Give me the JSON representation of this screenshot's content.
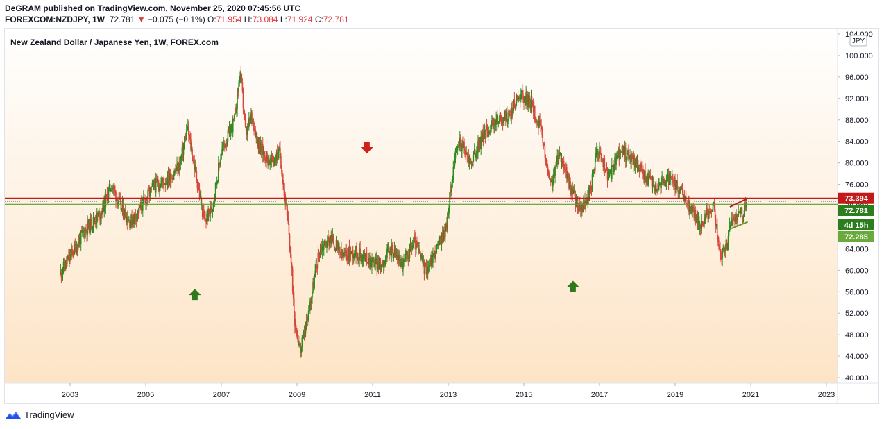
{
  "header": {
    "line1": "DeGRAM published on TradingView.com, November 25, 2020 07:45:56 UTC",
    "symbol": "FOREXCOM:NZDJPY, 1W",
    "last": "72.781",
    "change": "−0.075 (−0.1%)",
    "o_label": "O:",
    "o": "71.954",
    "h_label": "H:",
    "h": "73.084",
    "l_label": "L:",
    "l": "71.924",
    "c_label": "C:",
    "c": "72.781"
  },
  "currency": "JPY",
  "footer": {
    "brand": "TradingView"
  },
  "colors": {
    "up": "#2f8a1f",
    "down": "#d9463a",
    "resistance": "#c21a1a",
    "support": "#5aa02c",
    "bg_top": "#ffffff",
    "bg_bottom": "#fde4c6"
  },
  "chart_data": {
    "type": "candlestick",
    "title": "New Zealand Dollar / Japanese Yen, 1W, FOREX.com",
    "ylim": [
      39,
      104.5
    ],
    "y_ticks": [
      "40.000",
      "44.000",
      "48.000",
      "52.000",
      "56.000",
      "60.000",
      "64.000",
      "68.000",
      "72.000",
      "76.000",
      "80.000",
      "84.000",
      "88.000",
      "92.000",
      "96.000",
      "100.000",
      "104.000"
    ],
    "x_ticks": [
      "2003",
      "2005",
      "2007",
      "2009",
      "2011",
      "2013",
      "2015",
      "2017",
      "2019",
      "2021",
      "2023"
    ],
    "x_range": [
      2002.5,
      2023.3
    ],
    "price_path": [
      [
        2002.75,
        59.5
      ],
      [
        2003.0,
        62.5
      ],
      [
        2003.4,
        67.5
      ],
      [
        2003.8,
        70.5
      ],
      [
        2004.1,
        76.0
      ],
      [
        2004.35,
        71.5
      ],
      [
        2004.6,
        69.0
      ],
      [
        2004.9,
        72.0
      ],
      [
        2005.2,
        75.5
      ],
      [
        2005.6,
        77.0
      ],
      [
        2005.9,
        79.5
      ],
      [
        2006.1,
        86.5
      ],
      [
        2006.35,
        77.0
      ],
      [
        2006.55,
        69.0
      ],
      [
        2006.75,
        71.5
      ],
      [
        2007.0,
        82.0
      ],
      [
        2007.35,
        88.0
      ],
      [
        2007.5,
        97.0
      ],
      [
        2007.65,
        85.0
      ],
      [
        2007.8,
        89.0
      ],
      [
        2008.0,
        83.0
      ],
      [
        2008.3,
        80.0
      ],
      [
        2008.55,
        82.0
      ],
      [
        2008.8,
        66.0
      ],
      [
        2008.95,
        50.0
      ],
      [
        2009.1,
        45.0
      ],
      [
        2009.3,
        52.0
      ],
      [
        2009.6,
        64.0
      ],
      [
        2009.9,
        66.0
      ],
      [
        2010.2,
        62.5
      ],
      [
        2010.5,
        63.5
      ],
      [
        2010.9,
        62.0
      ],
      [
        2011.2,
        61.0
      ],
      [
        2011.5,
        64.0
      ],
      [
        2011.8,
        61.0
      ],
      [
        2012.1,
        65.5
      ],
      [
        2012.4,
        60.0
      ],
      [
        2012.7,
        64.0
      ],
      [
        2012.95,
        68.0
      ],
      [
        2013.15,
        80.0
      ],
      [
        2013.3,
        84.0
      ],
      [
        2013.6,
        80.0
      ],
      [
        2013.95,
        85.5
      ],
      [
        2014.3,
        88.0
      ],
      [
        2014.6,
        88.5
      ],
      [
        2014.9,
        93.0
      ],
      [
        2015.2,
        91.0
      ],
      [
        2015.45,
        86.0
      ],
      [
        2015.7,
        75.5
      ],
      [
        2015.95,
        82.0
      ],
      [
        2016.25,
        75.0
      ],
      [
        2016.5,
        71.0
      ],
      [
        2016.75,
        74.5
      ],
      [
        2016.95,
        83.0
      ],
      [
        2017.25,
        77.0
      ],
      [
        2017.55,
        82.5
      ],
      [
        2017.9,
        80.5
      ],
      [
        2018.2,
        77.5
      ],
      [
        2018.5,
        75.5
      ],
      [
        2018.8,
        77.0
      ],
      [
        2019.1,
        75.0
      ],
      [
        2019.4,
        71.5
      ],
      [
        2019.7,
        68.5
      ],
      [
        2020.0,
        72.5
      ],
      [
        2020.2,
        62.5
      ],
      [
        2020.35,
        64.5
      ],
      [
        2020.5,
        69.5
      ],
      [
        2020.7,
        70.5
      ],
      [
        2020.85,
        71.5
      ],
      [
        2020.9,
        72.8
      ]
    ],
    "horizontal_levels": [
      {
        "value": 73.394,
        "label": "73.394",
        "role": "resistance"
      },
      {
        "value": 72.285,
        "label": "72.285",
        "role": "support"
      }
    ],
    "price_labels": [
      {
        "value": 72.781,
        "label": "72.781"
      },
      {
        "text": "4d 15h"
      }
    ],
    "trendlines": [
      {
        "role": "upper",
        "points": [
          [
            2020.45,
            71.8
          ],
          [
            2020.92,
            73.4
          ]
        ]
      },
      {
        "role": "lower",
        "points": [
          [
            2020.45,
            67.7
          ],
          [
            2020.92,
            69.0
          ]
        ]
      }
    ],
    "markers": [
      {
        "type": "arrow-down",
        "x": 2010.85,
        "y": 82.8
      },
      {
        "type": "arrow-up",
        "x": 2006.3,
        "y": 55.5
      },
      {
        "type": "arrow-up",
        "x": 2016.3,
        "y": 57.0
      }
    ]
  }
}
